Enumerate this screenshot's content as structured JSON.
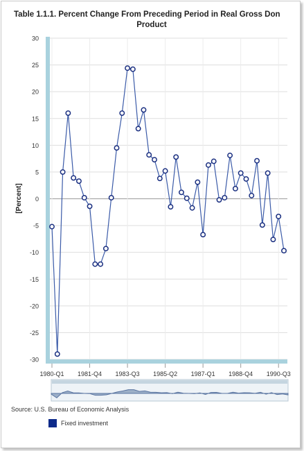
{
  "chart_data": {
    "type": "line",
    "title": "Table 1.1.1. Percent Change From Preceding Period in Real Gross Domestic Product",
    "title_line1": "Table 1.1.1. Percent Change From Preceding Period in Real Gross Don",
    "title_line2": "Product",
    "ylabel": "[Percent]",
    "xlabel": "",
    "ylim": [
      -30,
      30
    ],
    "yticks": [
      "30",
      "25",
      "20",
      "15",
      "10",
      "5",
      "0",
      "-5",
      "-10",
      "-15",
      "-20",
      "-25",
      "-30"
    ],
    "x_tick_labels": [
      "1980-Q1",
      "1981-Q4",
      "1983-Q3",
      "1985-Q2",
      "1987-Q1",
      "1988-Q4",
      "1990-Q3"
    ],
    "grid": true,
    "series": [
      {
        "name": "Fixed investment",
        "color": "#3a5aa8",
        "x": [
          "1980-Q1",
          "1980-Q2",
          "1980-Q3",
          "1980-Q4",
          "1981-Q1",
          "1981-Q2",
          "1981-Q3",
          "1981-Q4",
          "1982-Q1",
          "1982-Q2",
          "1982-Q3",
          "1982-Q4",
          "1983-Q1",
          "1983-Q2",
          "1983-Q3",
          "1983-Q4",
          "1984-Q1",
          "1984-Q2",
          "1984-Q3",
          "1984-Q4",
          "1985-Q1",
          "1985-Q2",
          "1985-Q3",
          "1985-Q4",
          "1986-Q1",
          "1986-Q2",
          "1986-Q3",
          "1986-Q4",
          "1987-Q1",
          "1987-Q2",
          "1987-Q3",
          "1987-Q4",
          "1988-Q1",
          "1988-Q2",
          "1988-Q3",
          "1988-Q4",
          "1989-Q1",
          "1989-Q2",
          "1989-Q3",
          "1989-Q4",
          "1990-Q1",
          "1990-Q2",
          "1990-Q3",
          "1990-Q4"
        ],
        "values": [
          -5.2,
          -29.0,
          5.0,
          16.0,
          3.9,
          3.3,
          0.2,
          -1.4,
          -12.2,
          -12.2,
          -9.3,
          0.2,
          9.5,
          16.0,
          24.4,
          24.2,
          13.1,
          16.6,
          8.2,
          7.3,
          3.8,
          5.2,
          -1.5,
          7.8,
          1.2,
          0.1,
          -1.7,
          3.1,
          -6.7,
          6.3,
          7.0,
          -0.2,
          0.2,
          8.1,
          1.9,
          4.8,
          3.7,
          0.6,
          7.1,
          -4.9,
          4.8,
          -7.6,
          -3.3,
          -9.7
        ]
      }
    ],
    "legend_position": "bottom-left"
  },
  "source_text": "Source: U.S. Bureau of Economic Analysis",
  "legend_label": "Fixed investment",
  "colors": {
    "line": "#3a5aa8",
    "marker_stroke": "#1a2f80",
    "axis_bar": "#a9d2de",
    "legend_swatch": "#0d2a8a"
  }
}
